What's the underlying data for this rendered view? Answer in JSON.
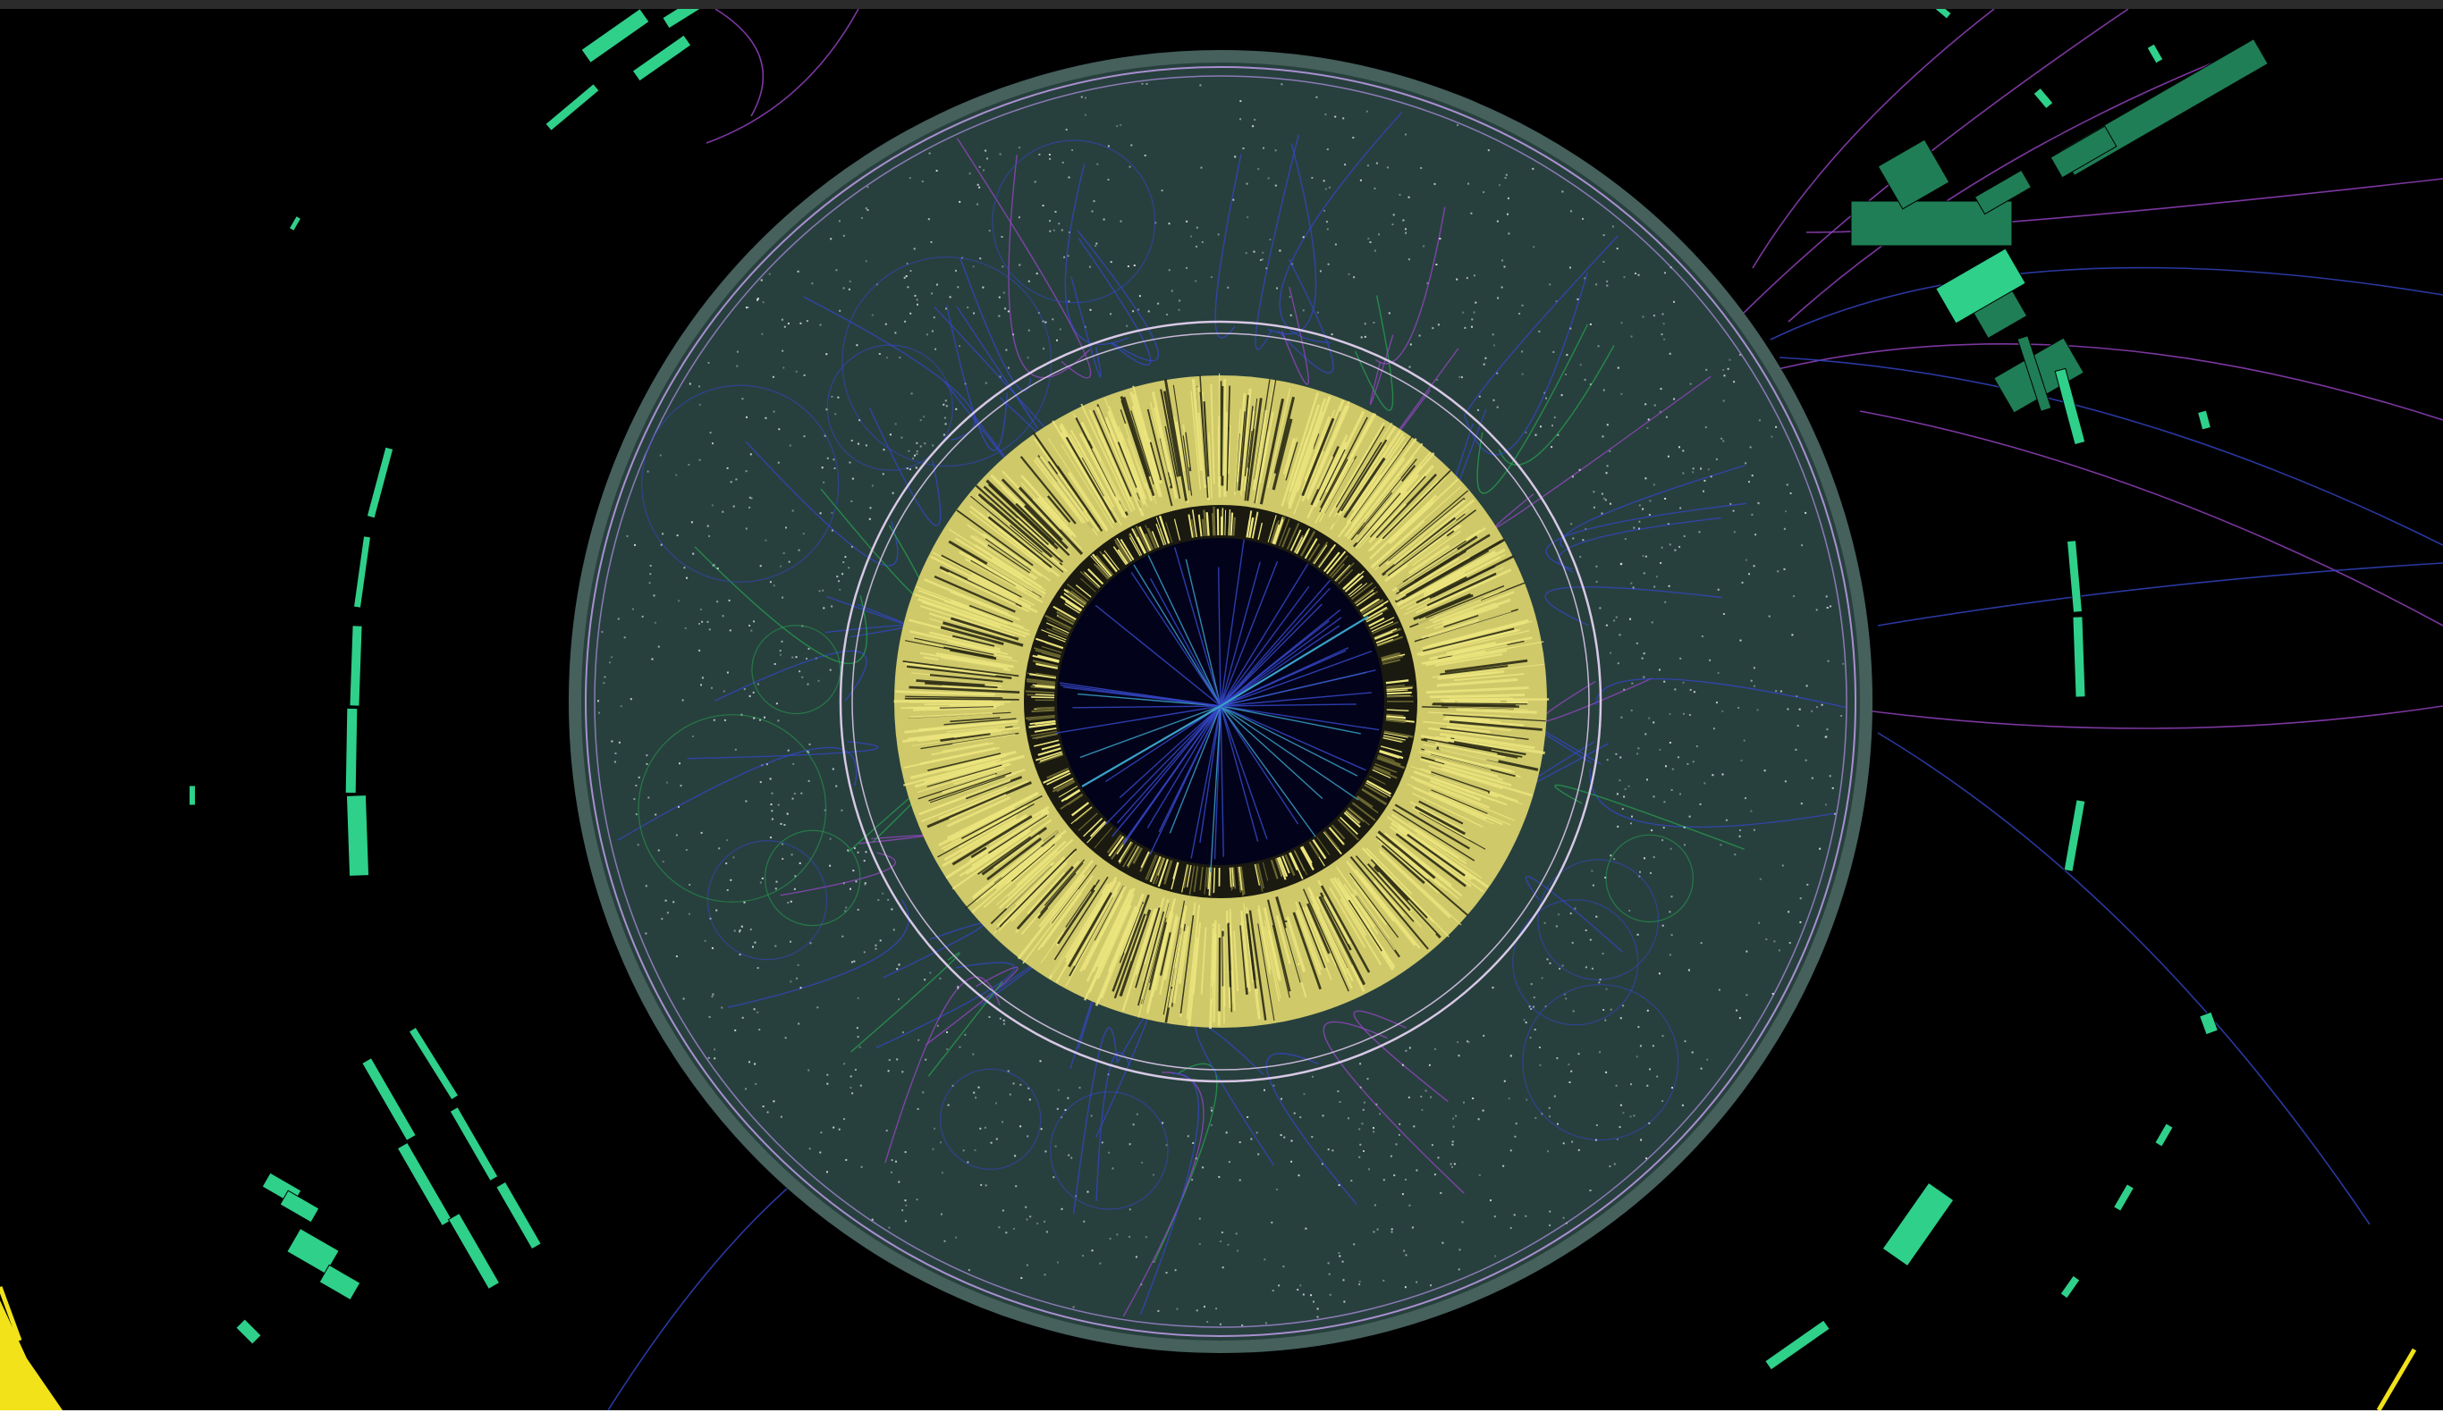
{
  "scene": {
    "colors": {
      "background": "#000000",
      "window_bar": "#2b2b2b",
      "outer_detector": "#27403d",
      "outer_detector_edge": "#46605c",
      "detector_rim": "#a98fd0",
      "inner_ring_stroke": "#d8c8e6",
      "calorimeter_yellow": "#ece57e",
      "calorimeter_dark": "#2a2a14",
      "inner_core": "#02031a",
      "muon_chambers": "#2fd08a",
      "muon_chambers_dim": "#1f7e55",
      "track_blue": "#3546c8",
      "track_purple": "#9b45c8",
      "track_green": "#28a050",
      "track_cyan": "#3aa0c8",
      "hits_white": "#e6e6f0",
      "corner_yellow": "#f2e21a"
    }
  }
}
